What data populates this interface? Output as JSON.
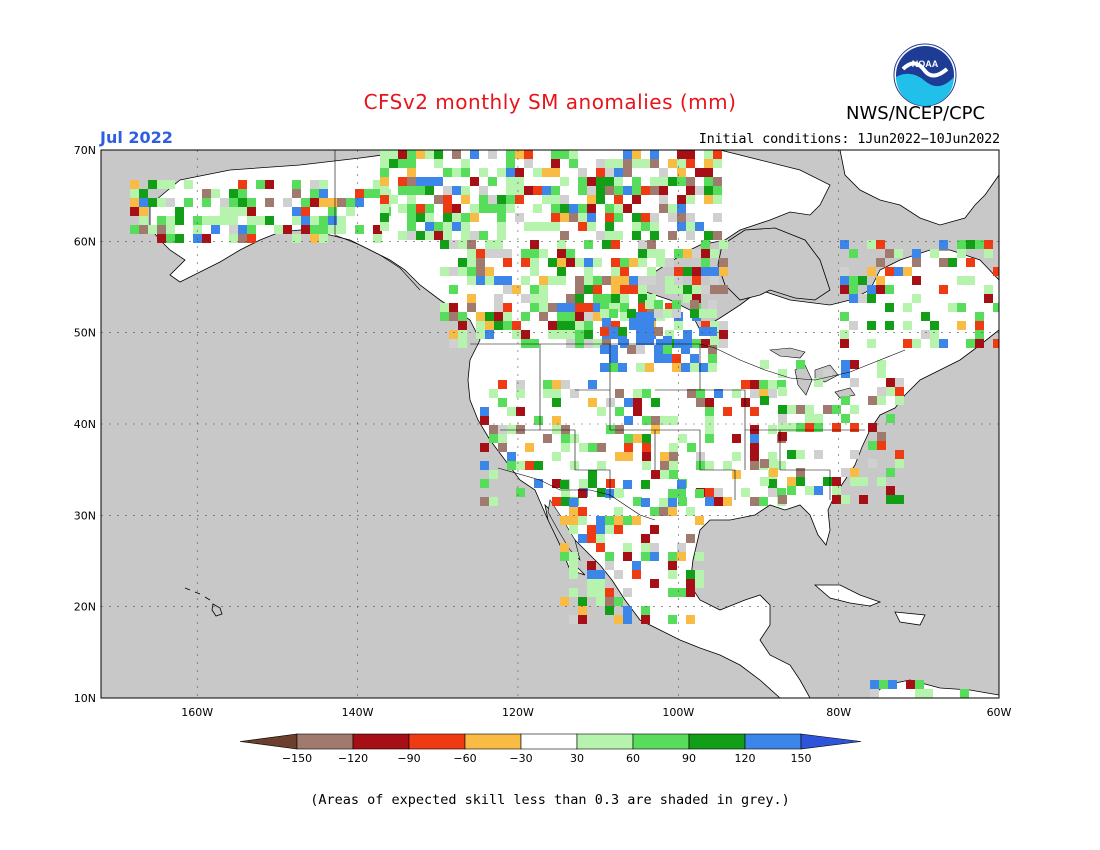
{
  "header": {
    "title": "CFSv2 monthly SM anomalies (mm)",
    "month": "Jul 2022",
    "agency": "NWS/NCEP/CPC",
    "initial_conditions": "Initial conditions: 1Jun2022−10Jun2022",
    "logo_text": "NOAA"
  },
  "map": {
    "lon_range": [
      -172,
      -60
    ],
    "lat_range": [
      10,
      70
    ],
    "lat_labels": [
      "70N",
      "60N",
      "50N",
      "40N",
      "30N",
      "20N",
      "10N"
    ],
    "lon_labels": [
      "160W",
      "140W",
      "120W",
      "100W",
      "80W",
      "60W"
    ],
    "ocean_color": "#c8c8c8",
    "land_color": "#ffffff"
  },
  "colorbar": {
    "ticks": [
      "−150",
      "−120",
      "−90",
      "−60",
      "−30",
      "30",
      "60",
      "90",
      "120",
      "150"
    ],
    "colors": [
      "#6b3e2e",
      "#a07a6e",
      "#a50f15",
      "#ee3b14",
      "#f8bb44",
      "#ffffff",
      "#b6f3ac",
      "#58dc5c",
      "#139e18",
      "#3b86e8",
      "#2e54d9"
    ]
  },
  "footnote": "(Areas of expected skill less than 0.3 are shaded in grey.)"
}
